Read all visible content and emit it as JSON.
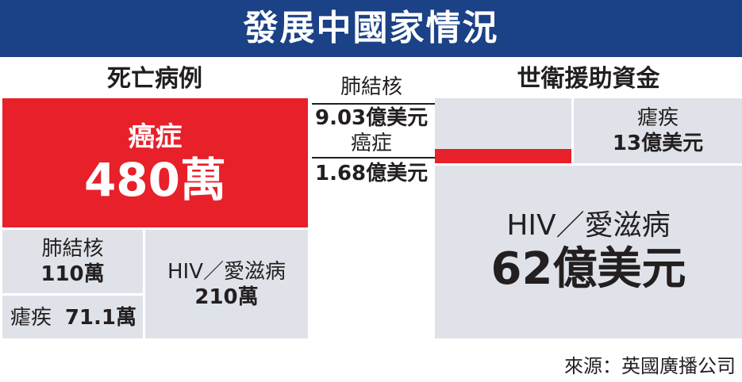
{
  "header": {
    "title": "發展中國家情況"
  },
  "left_section": {
    "title": "死亡病例"
  },
  "right_section": {
    "title": "世衛援助資金"
  },
  "source": "來源：英國廣播公司",
  "colors": {
    "title_bar": "#1b4186",
    "highlight": "#e8202a",
    "tile": "#dfe3e9"
  },
  "chart_data": [
    {
      "type": "treemap",
      "title": "死亡病例",
      "items": [
        {
          "name": "癌症",
          "value_label": "480萬",
          "value": 4800000
        },
        {
          "name": "肺結核",
          "value_label": "110萬",
          "value": 1100000
        },
        {
          "name": "瘧疾",
          "value_label": "71.1萬",
          "value": 711000
        },
        {
          "name": "HIV／愛滋病",
          "value_label": "210萬",
          "value": 2100000
        }
      ]
    },
    {
      "type": "treemap",
      "title": "世衛援助資金",
      "items": [
        {
          "name": "肺結核",
          "value_label": "9.03億美元",
          "value": 903000000
        },
        {
          "name": "癌症",
          "value_label": "1.68億美元",
          "value": 168000000
        },
        {
          "name": "瘧疾",
          "value_label": "13億美元",
          "value": 1300000000
        },
        {
          "name": "HIV／愛滋病",
          "value_label": "62億美元",
          "value": 6200000000
        }
      ]
    }
  ]
}
